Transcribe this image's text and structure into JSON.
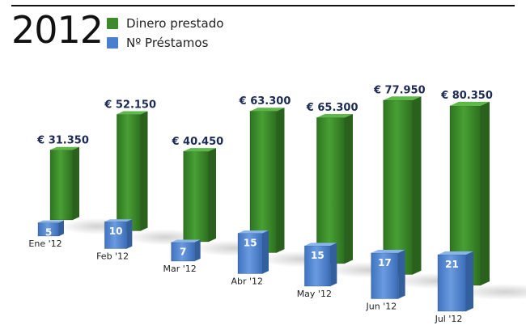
{
  "header": {
    "title": "2012"
  },
  "legend": {
    "items": [
      {
        "label": "Dinero prestado",
        "color": "#3f8a2c"
      },
      {
        "label": "Nº Préstamos",
        "color": "#4a7fce"
      }
    ]
  },
  "chart_data": {
    "type": "bar",
    "title": "2012",
    "categories": [
      "Ene '12",
      "Feb '12",
      "Mar '12",
      "Abr '12",
      "May '12",
      "Jun '12",
      "Jul '12"
    ],
    "series": [
      {
        "name": "Dinero prestado",
        "values": [
          31350,
          52150,
          40450,
          63300,
          65300,
          77950,
          80350
        ],
        "labels": [
          "€ 31.350",
          "€ 52.150",
          "€ 40.450",
          "€ 63.300",
          "€ 65.300",
          "€ 77.950",
          "€ 80.350"
        ],
        "color": "#3f8a2c"
      },
      {
        "name": "Nº Préstamos",
        "values": [
          5,
          10,
          7,
          15,
          15,
          17,
          21
        ],
        "labels": [
          "5",
          "10",
          "7",
          "15",
          "15",
          "17",
          "21"
        ],
        "color": "#4a7fce"
      }
    ],
    "legend": "top-left",
    "grid": false
  }
}
